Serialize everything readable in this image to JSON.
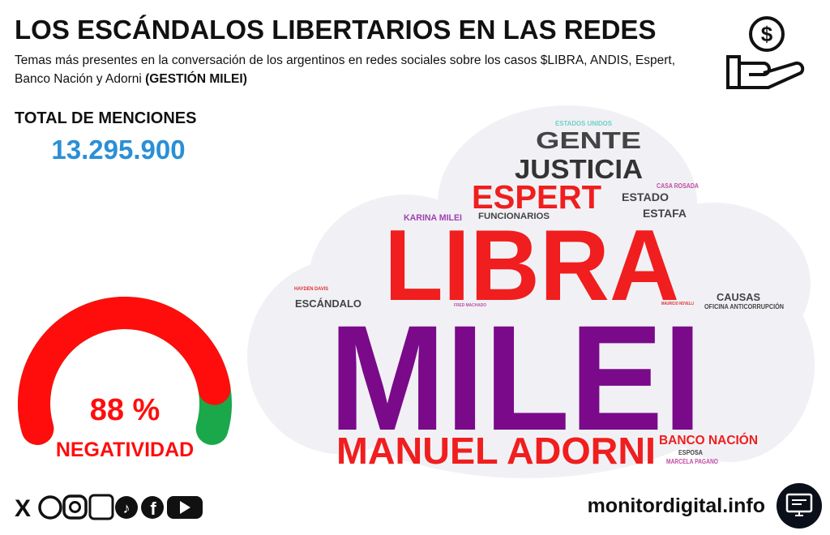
{
  "header": {
    "title": "LOS ESCÁNDALOS LIBERTARIOS EN LAS REDES",
    "subtitle": "Temas más presentes en la conversación de los argentinos en redes sociales sobre los casos $LIBRA, ANDIS, Espert, Banco Nación y Adorni",
    "subtitle_bold": "(GESTIÓN MILEI)"
  },
  "total": {
    "label": "TOTAL DE MENCIONES",
    "value": "13.295.900"
  },
  "gauge": {
    "value": 88,
    "label": "88 %",
    "caption": "NEGATIVIDAD",
    "color": "#ff0d0d",
    "rest_color": "#1aa84a"
  },
  "wordcloud": {
    "words": [
      {
        "text": "ESTADOS UNIDOS",
        "color": "#6fd0c8"
      },
      {
        "text": "GENTE",
        "color": "#444444"
      },
      {
        "text": "JUSTICIA",
        "color": "#333333"
      },
      {
        "text": "ESPERT",
        "color": "#f01e1e"
      },
      {
        "text": "CASA ROSADA",
        "color": "#c04ca0"
      },
      {
        "text": "ESTADO",
        "color": "#444444"
      },
      {
        "text": "KARINA MILEI",
        "color": "#a040b0"
      },
      {
        "text": "FUNCIONARIOS",
        "color": "#444444"
      },
      {
        "text": "ESTAFA",
        "color": "#444444"
      },
      {
        "text": "LIBRA",
        "color": "#f01e1e"
      },
      {
        "text": "HAYDEN DAVIS",
        "color": "#e03030"
      },
      {
        "text": "ESCÁNDALO",
        "color": "#444444"
      },
      {
        "text": "FRED MACHADO",
        "color": "#c04ca0"
      },
      {
        "text": "MAURICIO NOVELLI",
        "color": "#e03030"
      },
      {
        "text": "CAUSAS",
        "color": "#444444"
      },
      {
        "text": "OFICINA ANTICORRUPCIÓN",
        "color": "#444444"
      },
      {
        "text": "MILEI",
        "color": "#7a0a8a"
      },
      {
        "text": "MANUEL ADORNI",
        "color": "#f01e1e"
      },
      {
        "text": "BANCO NACIÓN",
        "color": "#f01e1e"
      },
      {
        "text": "ESPOSA",
        "color": "#444444"
      },
      {
        "text": "MARCELA PAGANO",
        "color": "#c04ca0"
      }
    ]
  },
  "footer": {
    "site": "monitordigital.info"
  }
}
